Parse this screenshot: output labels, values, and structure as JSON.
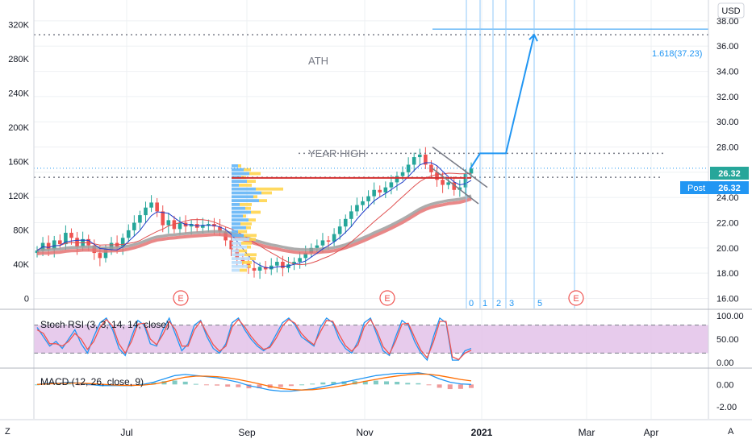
{
  "currency_badge": "USD",
  "price_tags": {
    "last": "26.32",
    "post_label": "Post",
    "post_value": "26.32"
  },
  "colors": {
    "up": "#26a69a",
    "down": "#ef5350",
    "blue": "#2962ff",
    "fib": "#2196f3",
    "ma_fast": "#1e3cc8",
    "ma_mid": "#e05050",
    "ma_slow_grey": "#9e9e9e",
    "ma_slow_red": "#e57373",
    "rsi_band": "#e1bee7",
    "event": "#ef5350",
    "grid": "#eef0f3"
  },
  "annotations": {
    "ath": "ATH",
    "year_high": "YEAR HIGH",
    "fib_label": "1.618(37.23)"
  },
  "fib_time_labels": [
    "0",
    "1",
    "2",
    "3",
    "5"
  ],
  "events": [
    "E",
    "E",
    "E"
  ],
  "corners": {
    "left": "Z",
    "right": "A"
  },
  "chart_data": [
    {
      "type": "candlestick",
      "title": "",
      "y_axis_right": {
        "ticks": [
          "16.00",
          "18.00",
          "20.00",
          "22.00",
          "24.00",
          "26.00",
          "28.00",
          "30.00",
          "32.00",
          "34.00",
          "36.00",
          "38.00"
        ],
        "range": [
          15.2,
          39.4
        ]
      },
      "y_axis_left_volume": {
        "ticks": [
          "0",
          "40K",
          "80K",
          "120K",
          "160K",
          "200K",
          "240K",
          "280K",
          "320K"
        ],
        "range": [
          -12000,
          345000
        ]
      },
      "x_axis": {
        "ticks": [
          "Jul",
          "Sep",
          "Nov",
          "2021",
          "Mar",
          "Apr"
        ]
      },
      "close_path": [
        19.8,
        20.4,
        19.9,
        20.6,
        20.3,
        21.2,
        20.8,
        20.1,
        20.7,
        20.2,
        19.6,
        19.2,
        19.9,
        20.4,
        20.1,
        20.8,
        21.4,
        22.0,
        22.6,
        23.2,
        23.6,
        22.9,
        21.8,
        22.2,
        21.5,
        22.0,
        21.7,
        21.9,
        21.6,
        21.8,
        21.9,
        21.7,
        21.3,
        20.6,
        19.9,
        19.2,
        18.8,
        18.4,
        18.2,
        18.5,
        18.3,
        18.6,
        18.9,
        18.4,
        18.7,
        18.9,
        19.2,
        19.6,
        20.0,
        20.2,
        20.6,
        20.5,
        21.1,
        21.7,
        22.3,
        22.9,
        23.4,
        23.7,
        24.1,
        24.6,
        24.4,
        24.8,
        25.2,
        25.7,
        26.0,
        26.6,
        27.2,
        27.4,
        26.6,
        26.0,
        25.4,
        25.0,
        25.2,
        24.6,
        24.8,
        25.9,
        26.3
      ],
      "horizontal_levels": {
        "ath": 36.9,
        "year_high": 27.5,
        "current": 26.32,
        "pivot_dotted": 25.6,
        "resistance_red": 25.55
      },
      "projection_path": [
        [
          26.3,
          26.3
        ],
        [
          27.5,
          27.5
        ],
        [
          27.5,
          27.5
        ],
        [
          36.9,
          36.9
        ]
      ],
      "moving_averages": [
        "fast",
        "mid",
        "slow_grey",
        "slow_red"
      ]
    },
    {
      "type": "line",
      "title": "Stoch RSI (3, 3, 14, 14, close)",
      "y_ticks": [
        "100.00",
        "50.00",
        "0.00"
      ],
      "ylim": [
        0,
        100
      ],
      "bands": [
        20,
        80
      ],
      "series": [
        {
          "values": [
            75,
            55,
            35,
            45,
            30,
            50,
            70,
            40,
            20,
            55,
            85,
            95,
            70,
            30,
            15,
            55,
            90,
            80,
            40,
            35,
            70,
            95,
            60,
            25,
            40,
            80,
            90,
            55,
            30,
            20,
            40,
            85,
            95,
            70,
            50,
            35,
            25,
            35,
            60,
            85,
            95,
            80,
            55,
            45,
            35,
            75,
            95,
            85,
            50,
            30,
            20,
            45,
            85,
            95,
            60,
            25,
            15,
            55,
            90,
            80,
            45,
            20,
            5,
            55,
            95,
            85,
            5,
            5,
            25,
            30
          ]
        },
        {
          "values": [
            70,
            62,
            40,
            40,
            35,
            45,
            62,
            50,
            28,
            45,
            75,
            92,
            78,
            40,
            20,
            45,
            82,
            84,
            50,
            38,
            60,
            88,
            70,
            35,
            35,
            70,
            88,
            62,
            38,
            24,
            35,
            76,
            92,
            76,
            56,
            40,
            28,
            32,
            52,
            78,
            92,
            84,
            62,
            48,
            38,
            65,
            90,
            88,
            60,
            36,
            24,
            38,
            76,
            92,
            68,
            34,
            18,
            46,
            82,
            84,
            54,
            26,
            10,
            44,
            88,
            88,
            12,
            6,
            20,
            26
          ]
        }
      ]
    },
    {
      "type": "line",
      "title": "MACD (12, 26, close, 9)",
      "y_ticks": [
        "0.00",
        "-2.00"
      ],
      "ylim": [
        -3.1,
        1.4
      ],
      "series": [
        {
          "values": [
            0.0,
            0.1,
            0.1,
            0.2,
            0.1,
            0.0,
            -0.1,
            -0.1,
            -0.1,
            -0.1,
            0.0,
            0.2,
            0.5,
            0.8,
            0.9,
            0.8,
            0.7,
            0.6,
            0.4,
            0.2,
            -0.1,
            -0.3,
            -0.5,
            -0.6,
            -0.6,
            -0.5,
            -0.4,
            -0.2,
            0.0,
            0.2,
            0.4,
            0.6,
            0.8,
            0.9,
            1.0,
            1.0,
            1.05,
            0.9,
            0.5,
            0.2,
            0.05,
            0.0
          ]
        },
        {
          "values": [
            0.0,
            0.05,
            0.08,
            0.12,
            0.12,
            0.08,
            0.02,
            -0.04,
            -0.07,
            -0.09,
            -0.06,
            0.03,
            0.2,
            0.45,
            0.65,
            0.75,
            0.75,
            0.7,
            0.6,
            0.45,
            0.25,
            0.05,
            -0.18,
            -0.36,
            -0.46,
            -0.5,
            -0.47,
            -0.38,
            -0.24,
            -0.08,
            0.1,
            0.28,
            0.46,
            0.62,
            0.76,
            0.86,
            0.94,
            0.92,
            0.8,
            0.62,
            0.45,
            0.32
          ]
        }
      ]
    }
  ]
}
